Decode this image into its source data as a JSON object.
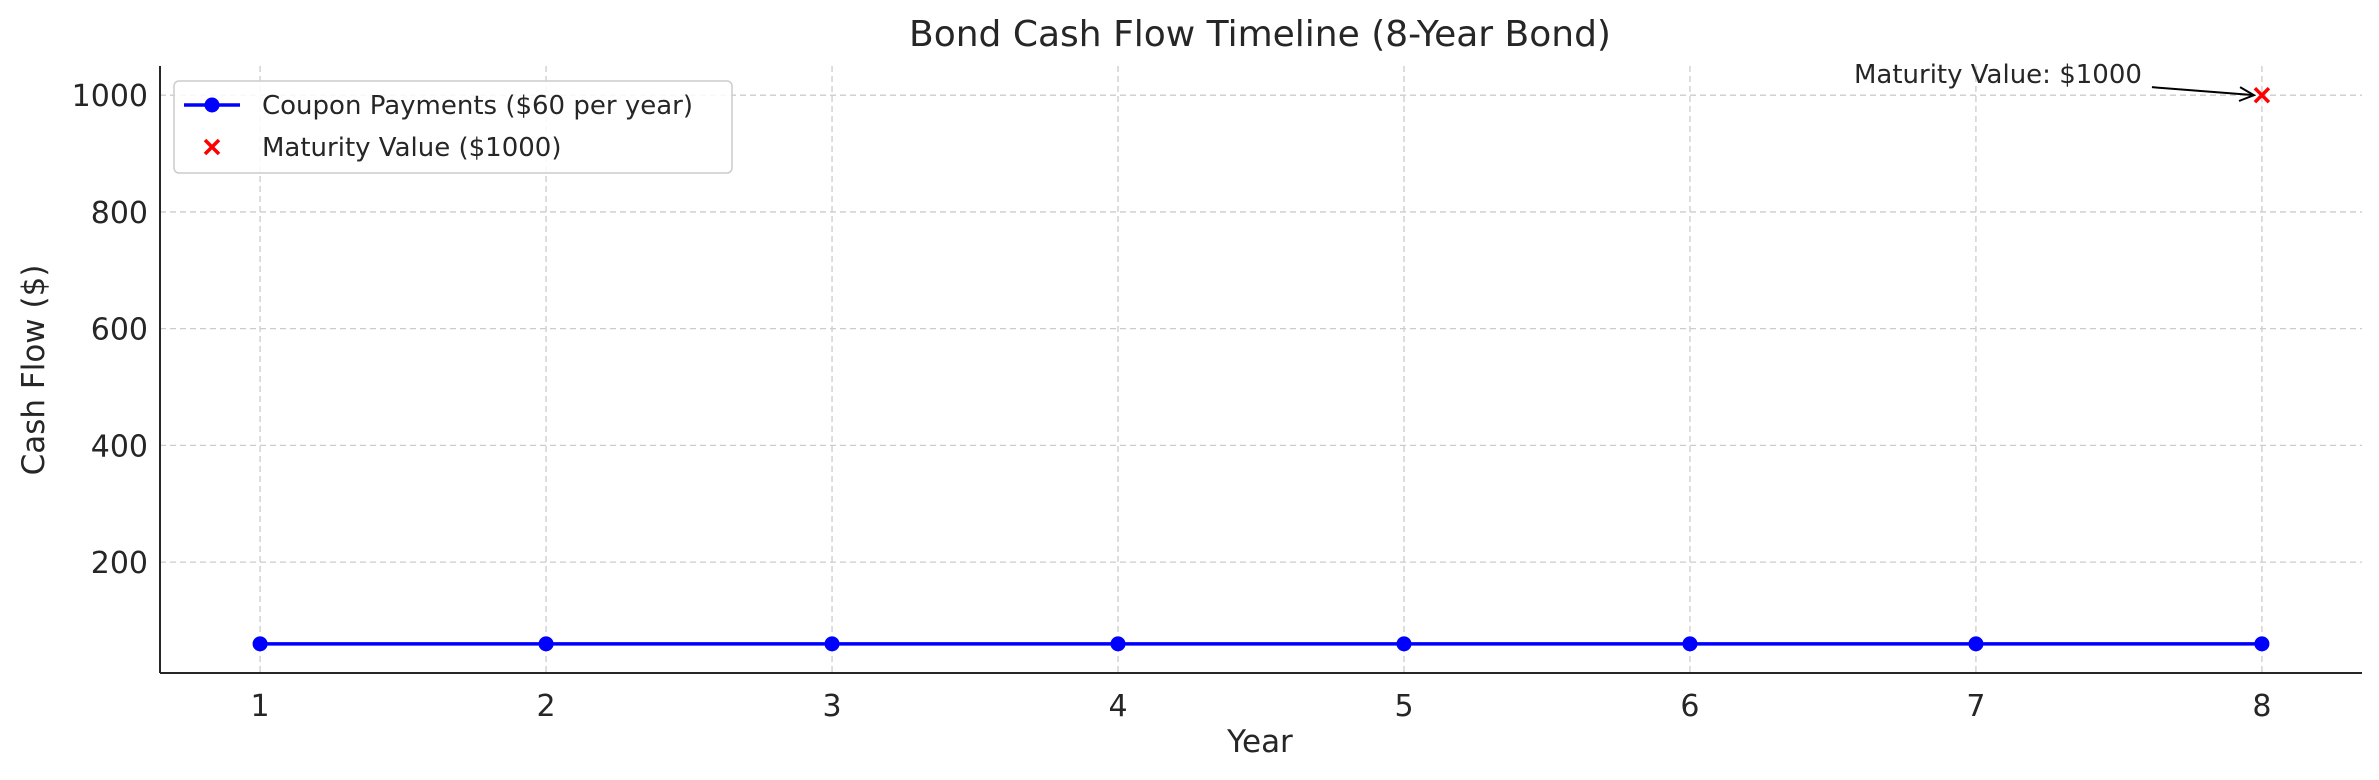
{
  "chart_data": {
    "type": "line",
    "title": "Bond Cash Flow Timeline (8-Year Bond)",
    "xlabel": "Year",
    "ylabel": "Cash Flow ($)",
    "x": [
      1,
      2,
      3,
      4,
      5,
      6,
      7,
      8
    ],
    "xlim": [
      0.65,
      8.35
    ],
    "ylim": [
      10,
      1050
    ],
    "xticks": [
      1,
      2,
      3,
      4,
      5,
      6,
      7,
      8
    ],
    "yticks": [
      200,
      400,
      600,
      800,
      1000
    ],
    "grid": true,
    "legend_position": "top-left",
    "series": [
      {
        "name": "Coupon Payments ($60 per year)",
        "type": "line",
        "marker": "circle",
        "color": "#0000ff",
        "values": [
          60,
          60,
          60,
          60,
          60,
          60,
          60,
          60
        ]
      },
      {
        "name": "Maturity Value ($1000)",
        "type": "scatter",
        "marker": "x",
        "color": "#ff0000",
        "points": [
          {
            "x": 8,
            "y": 1000
          }
        ]
      }
    ],
    "annotations": [
      {
        "text": "Maturity Value: $1000",
        "x": 8,
        "y": 1000
      }
    ]
  }
}
